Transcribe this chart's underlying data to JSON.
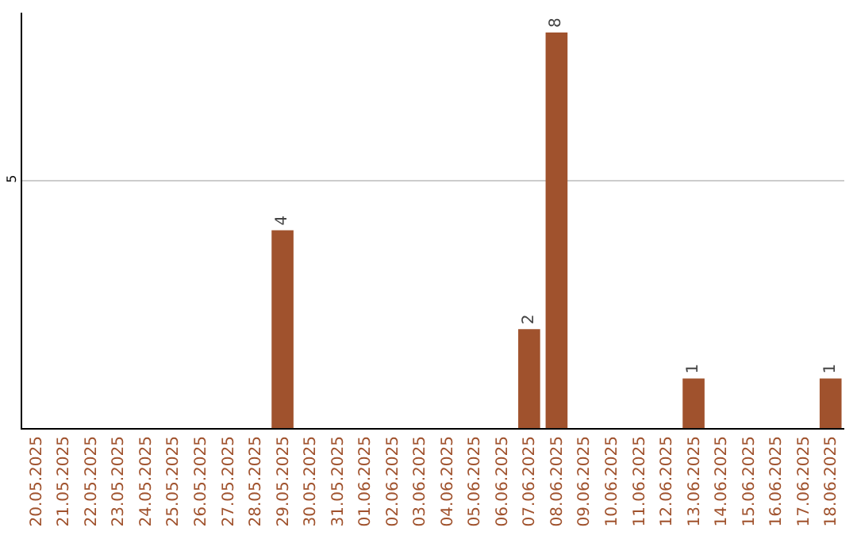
{
  "chart_data": {
    "type": "bar",
    "categories": [
      "20.05.2025",
      "21.05.2025",
      "22.05.2025",
      "23.05.2025",
      "24.05.2025",
      "25.05.2025",
      "26.05.2025",
      "27.05.2025",
      "28.05.2025",
      "29.05.2025",
      "30.05.2025",
      "31.05.2025",
      "01.06.2025",
      "02.06.2025",
      "03.06.2025",
      "04.06.2025",
      "05.06.2025",
      "06.06.2025",
      "07.06.2025",
      "08.06.2025",
      "09.06.2025",
      "10.06.2025",
      "11.06.2025",
      "12.06.2025",
      "13.06.2025",
      "14.06.2025",
      "15.06.2025",
      "16.06.2025",
      "17.06.2025",
      "18.06.2025"
    ],
    "values": [
      0,
      0,
      0,
      0,
      0,
      0,
      0,
      0,
      0,
      4,
      0,
      0,
      0,
      0,
      0,
      0,
      0,
      0,
      2,
      8,
      0,
      0,
      0,
      0,
      1,
      0,
      0,
      0,
      0,
      1
    ],
    "value_labels": [
      null,
      null,
      null,
      null,
      null,
      null,
      null,
      null,
      null,
      "4",
      null,
      null,
      null,
      null,
      null,
      null,
      null,
      null,
      "2",
      "8",
      null,
      null,
      null,
      null,
      "1",
      null,
      null,
      null,
      null,
      "1"
    ],
    "color": "#a0522d",
    "ylim": [
      0,
      8.4
    ],
    "yticks": [
      5
    ],
    "grid": "y"
  }
}
